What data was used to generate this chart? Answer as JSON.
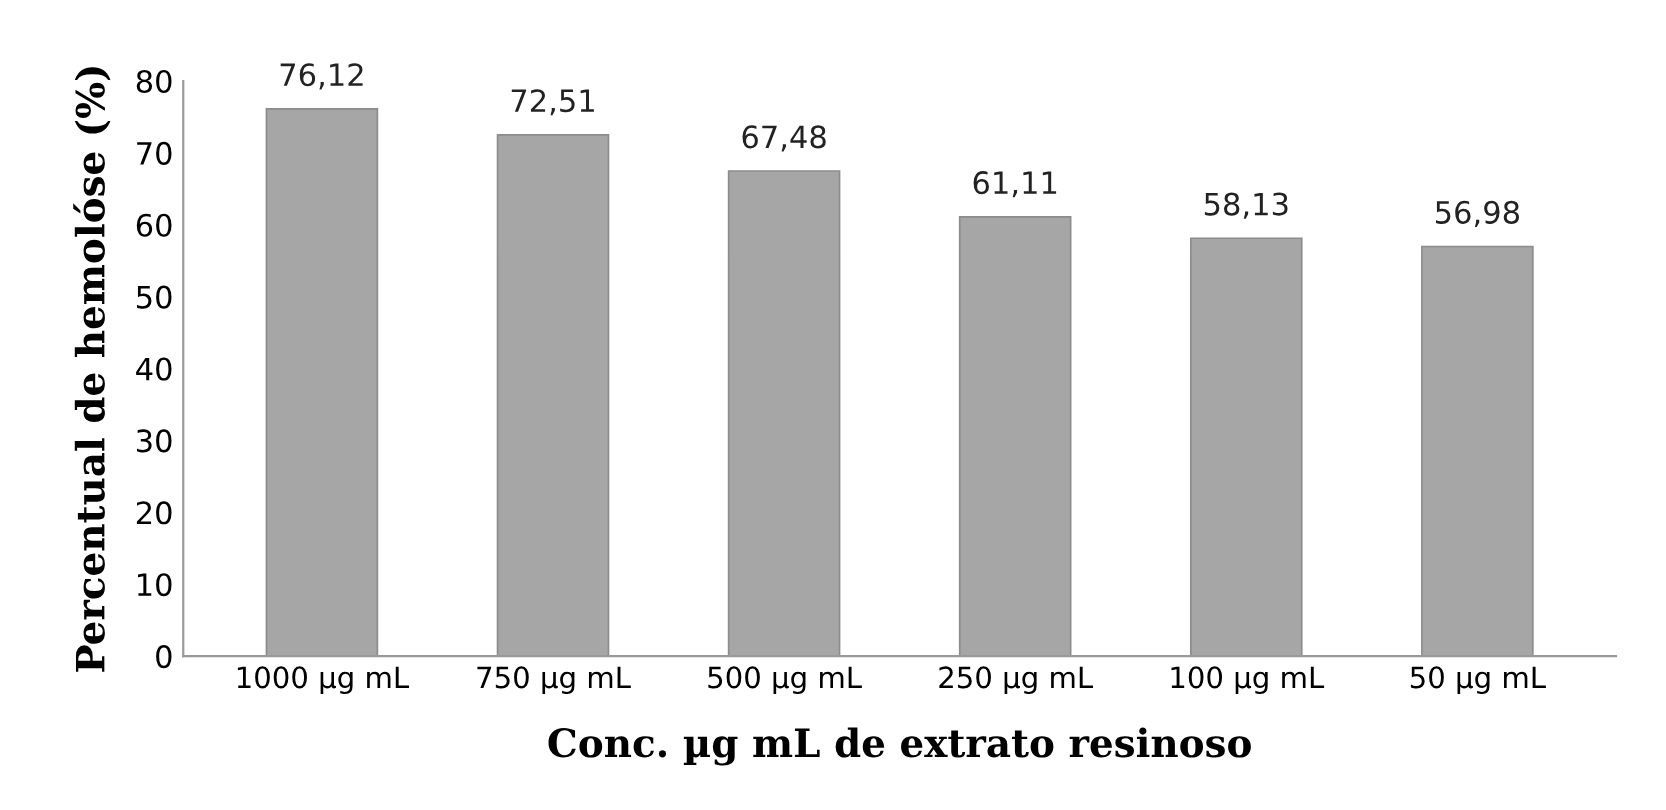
{
  "chart_data": {
    "type": "bar",
    "xlabel": "Conc. µg mL de extrato resinoso",
    "ylabel": "Percentual de hemolóse (%)",
    "categories": [
      "1000 µg mL",
      "750 µg mL",
      "500 µg mL",
      "250 µg mL",
      "100 µg mL",
      "50 µg mL"
    ],
    "values": [
      76.12,
      72.51,
      67.48,
      61.11,
      58.13,
      56.98
    ],
    "value_labels": [
      "76,12",
      "72,51",
      "67,48",
      "61,11",
      "58,13",
      "56,98"
    ],
    "color": "#a6a6a6",
    "ylim": [
      0,
      80
    ],
    "yticks": [
      0,
      10,
      20,
      30,
      40,
      50,
      60,
      70,
      80
    ],
    "grid": false,
    "legend": false
  }
}
